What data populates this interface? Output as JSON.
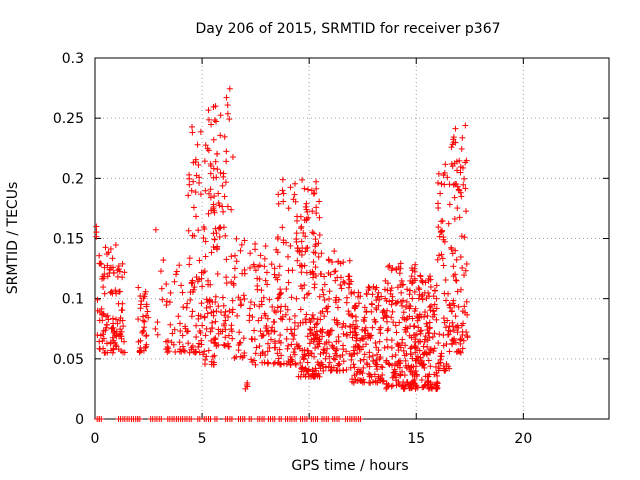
{
  "chart_data": {
    "type": "scatter",
    "title": "Day 206 of 2015, SRMTID for receiver p367",
    "xlabel": "GPS time / hours",
    "ylabel": "SRMTID / TECUs",
    "xlim": [
      0,
      24
    ],
    "ylim": [
      0,
      0.3
    ],
    "x_ticks": [
      0,
      5,
      10,
      15,
      20
    ],
    "y_ticks": [
      0,
      0.05,
      0.1,
      0.15,
      0.2,
      0.25,
      0.3
    ],
    "x_tick_labels": [
      "0",
      "5",
      "10",
      "15",
      "20"
    ],
    "y_tick_labels": [
      "0",
      "0.05",
      "0.1",
      "0.15",
      "0.2",
      "0.25",
      "0.3"
    ],
    "grid": true,
    "marker": "+",
    "color": "#ff0000",
    "series": [
      {
        "name": "SRMTID",
        "clusters": [
          {
            "x0": 0.0,
            "x1": 0.1,
            "n": 3,
            "ymin": 0.15,
            "ymax": 0.16
          },
          {
            "x0": 0.1,
            "x1": 1.2,
            "n": 90,
            "ymin": 0.055,
            "ymax": 0.145
          },
          {
            "x0": 1.0,
            "x1": 1.4,
            "n": 25,
            "ymin": 0.055,
            "ymax": 0.13
          },
          {
            "x0": 2.0,
            "x1": 2.5,
            "n": 35,
            "ymin": 0.055,
            "ymax": 0.11
          },
          {
            "x0": 2.8,
            "x1": 3.2,
            "n": 8,
            "ymin": 0.07,
            "ymax": 0.16
          },
          {
            "x0": 3.3,
            "x1": 4.3,
            "n": 40,
            "ymin": 0.055,
            "ymax": 0.13
          },
          {
            "x0": 4.3,
            "x1": 5.0,
            "n": 70,
            "ymin": 0.055,
            "ymax": 0.25
          },
          {
            "x0": 5.0,
            "x1": 5.6,
            "n": 80,
            "ymin": 0.045,
            "ymax": 0.26
          },
          {
            "x0": 5.6,
            "x1": 6.5,
            "n": 90,
            "ymin": 0.06,
            "ymax": 0.29
          },
          {
            "x0": 6.5,
            "x1": 7.0,
            "n": 30,
            "ymin": 0.05,
            "ymax": 0.155
          },
          {
            "x0": 7.0,
            "x1": 7.2,
            "n": 4,
            "ymin": 0.025,
            "ymax": 0.035
          },
          {
            "x0": 7.2,
            "x1": 8.5,
            "n": 90,
            "ymin": 0.045,
            "ymax": 0.15
          },
          {
            "x0": 8.5,
            "x1": 9.5,
            "n": 100,
            "ymin": 0.045,
            "ymax": 0.2
          },
          {
            "x0": 9.5,
            "x1": 10.5,
            "n": 160,
            "ymin": 0.035,
            "ymax": 0.2
          },
          {
            "x0": 10.5,
            "x1": 12.0,
            "n": 140,
            "ymin": 0.04,
            "ymax": 0.14
          },
          {
            "x0": 12.0,
            "x1": 13.5,
            "n": 160,
            "ymin": 0.03,
            "ymax": 0.11
          },
          {
            "x0": 13.5,
            "x1": 15.0,
            "n": 200,
            "ymin": 0.025,
            "ymax": 0.13
          },
          {
            "x0": 15.0,
            "x1": 16.0,
            "n": 140,
            "ymin": 0.025,
            "ymax": 0.12
          },
          {
            "x0": 16.0,
            "x1": 16.6,
            "n": 70,
            "ymin": 0.04,
            "ymax": 0.22
          },
          {
            "x0": 16.6,
            "x1": 17.4,
            "n": 100,
            "ymin": 0.055,
            "ymax": 0.245
          }
        ],
        "zero_points_x": [
          0.1,
          0.2,
          1.1,
          1.3,
          1.5,
          1.7,
          1.9,
          2.0,
          2.6,
          2.8,
          3.0,
          3.4,
          3.6,
          3.8,
          4.0,
          4.2,
          4.4,
          4.8,
          5.1,
          5.3,
          5.6,
          6.1,
          6.3,
          6.7,
          6.9,
          7.2,
          7.6,
          7.8,
          8.1,
          8.3,
          8.6,
          8.9,
          9.1,
          9.3,
          9.6,
          9.8,
          10.1,
          10.3,
          10.6,
          10.8,
          11.1,
          11.3,
          11.7,
          11.9,
          12.1,
          12.3
        ]
      }
    ]
  }
}
